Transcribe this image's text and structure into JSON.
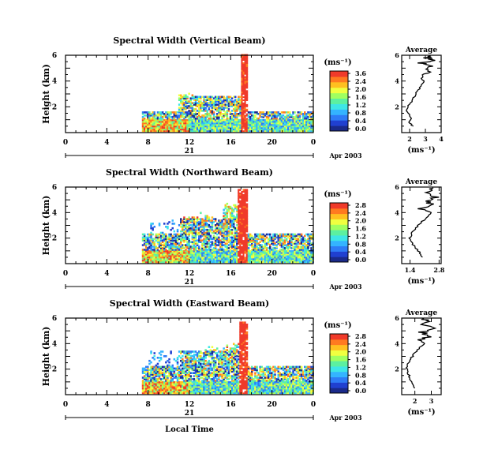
{
  "chart_data": [
    {
      "type": "heatmap",
      "title": "Spectral Width (Vertical Beam)",
      "ylabel": "Height (km)",
      "x_ticks": [
        "0",
        "4",
        "8",
        "12",
        "16",
        "20",
        "0"
      ],
      "y_ticks": [
        "2",
        "4",
        "6"
      ],
      "date_day": "21",
      "date_month": "Apr 2003",
      "xlim": [
        0,
        24
      ],
      "ylim": [
        0,
        6
      ],
      "colorbar": {
        "unit": "(ms⁻¹)",
        "ticks": [
          "3.6",
          "2.4",
          "2.0",
          "1.6",
          "1.2",
          "0.8",
          "0.4",
          "0.0"
        ]
      },
      "average": {
        "title": "Average",
        "xlabel": "(ms⁻¹)",
        "x_ticks": [
          "2",
          "3",
          "4"
        ],
        "y_ticks": [
          "2",
          "4",
          "6"
        ],
        "xlim": [
          1.5,
          4
        ],
        "ylim": [
          0,
          6
        ],
        "profile": [
          [
            2.2,
            0.5
          ],
          [
            2.0,
            0.8
          ],
          [
            2.1,
            1.2
          ],
          [
            1.8,
            1.6
          ],
          [
            1.9,
            2.0
          ],
          [
            2.1,
            2.4
          ],
          [
            2.3,
            2.8
          ],
          [
            2.5,
            3.2
          ],
          [
            2.7,
            3.6
          ],
          [
            2.9,
            4.0
          ],
          [
            2.6,
            4.4
          ],
          [
            3.2,
            4.7
          ],
          [
            2.9,
            5.0
          ],
          [
            3.5,
            5.2
          ],
          [
            2.8,
            5.4
          ],
          [
            3.6,
            5.6
          ],
          [
            3.1,
            5.8
          ],
          [
            3.3,
            6.0
          ]
        ]
      }
    },
    {
      "type": "heatmap",
      "title": "Spectral Width (Northward Beam)",
      "ylabel": "Height (km)",
      "x_ticks": [
        "0",
        "4",
        "8",
        "12",
        "16",
        "20",
        "0"
      ],
      "y_ticks": [
        "2",
        "4",
        "6"
      ],
      "date_day": "21",
      "date_month": "Apr 2003",
      "xlim": [
        0,
        24
      ],
      "ylim": [
        0,
        6
      ],
      "colorbar": {
        "unit": "(ms⁻¹)",
        "ticks": [
          "2.8",
          "2.4",
          "2.0",
          "1.6",
          "1.2",
          "0.8",
          "0.4",
          "0.0"
        ]
      },
      "average": {
        "title": "Average",
        "xlabel": "(ms⁻¹)",
        "x_ticks": [
          "1.4",
          "2.8"
        ],
        "y_ticks": [
          "2",
          "4",
          "6"
        ],
        "xlim": [
          1.0,
          2.9
        ],
        "ylim": [
          0,
          6
        ],
        "profile": [
          [
            2.0,
            0.5
          ],
          [
            1.9,
            0.8
          ],
          [
            1.7,
            1.2
          ],
          [
            1.5,
            1.6
          ],
          [
            1.4,
            2.0
          ],
          [
            1.5,
            2.4
          ],
          [
            1.7,
            2.8
          ],
          [
            1.9,
            3.2
          ],
          [
            2.2,
            3.6
          ],
          [
            2.4,
            4.0
          ],
          [
            2.0,
            4.3
          ],
          [
            2.6,
            4.6
          ],
          [
            2.2,
            4.9
          ],
          [
            2.7,
            5.2
          ],
          [
            2.3,
            5.5
          ],
          [
            2.6,
            5.8
          ],
          [
            2.4,
            6.0
          ]
        ]
      }
    },
    {
      "type": "heatmap",
      "title": "Spectral Width (Eastward Beam)",
      "ylabel": "Height (km)",
      "x_ticks": [
        "0",
        "4",
        "8",
        "12",
        "16",
        "20",
        "0"
      ],
      "y_ticks": [
        "2",
        "4",
        "6"
      ],
      "date_day": "21",
      "date_month": "Apr 2003",
      "xlim": [
        0,
        24
      ],
      "ylim": [
        0,
        6
      ],
      "colorbar": {
        "unit": "(ms⁻¹)",
        "ticks": [
          "2.8",
          "2.4",
          "2.0",
          "1.6",
          "1.2",
          "0.8",
          "0.4",
          "0.0"
        ]
      },
      "average": {
        "title": "Average",
        "xlabel": "(ms⁻¹)",
        "x_ticks": [
          "2",
          "3"
        ],
        "y_ticks": [
          "2",
          "4",
          "6"
        ],
        "xlim": [
          1.2,
          3.6
        ],
        "ylim": [
          0,
          6
        ],
        "profile": [
          [
            2.0,
            0.5
          ],
          [
            1.8,
            0.9
          ],
          [
            1.7,
            1.3
          ],
          [
            1.6,
            1.7
          ],
          [
            1.5,
            2.1
          ],
          [
            1.6,
            2.5
          ],
          [
            1.8,
            2.9
          ],
          [
            2.0,
            3.3
          ],
          [
            2.3,
            3.7
          ],
          [
            2.6,
            4.0
          ],
          [
            2.2,
            4.3
          ],
          [
            2.9,
            4.6
          ],
          [
            2.5,
            4.9
          ],
          [
            3.1,
            5.2
          ],
          [
            2.4,
            5.5
          ],
          [
            2.8,
            5.8
          ],
          [
            2.5,
            6.0
          ]
        ]
      }
    }
  ],
  "xaxis_label": "Local Time"
}
